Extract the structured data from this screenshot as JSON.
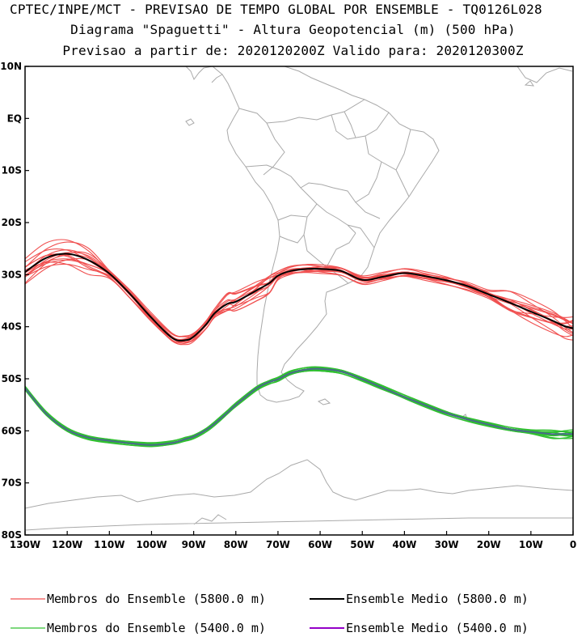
{
  "header": {
    "line1": "CPTEC/INPE/MCT - PREVISAO DE TEMPO GLOBAL POR ENSEMBLE - TQ0126L028",
    "line2": "Diagrama \"Spaguetti\" - Altura Geopotencial (m) (500 hPa)",
    "line3": "Previsao a partir de: 2020120200Z  Valido para: 2020120300Z"
  },
  "chart_data": {
    "type": "line",
    "title": "Diagrama \"Spaguetti\" - Altura Geopotencial (m) (500 hPa)",
    "xlim": [
      -130,
      0
    ],
    "ylim": [
      -80,
      10
    ],
    "x_ticks": [
      -130,
      -120,
      -110,
      -100,
      -90,
      -80,
      -70,
      -60,
      -50,
      -40,
      -30,
      -20,
      -10,
      0
    ],
    "x_tick_labels": [
      "130W",
      "120W",
      "110W",
      "100W",
      "90W",
      "80W",
      "70W",
      "60W",
      "50W",
      "40W",
      "30W",
      "20W",
      "10W",
      "0"
    ],
    "y_ticks": [
      10,
      0,
      -10,
      -20,
      -30,
      -40,
      -50,
      -60,
      -70,
      -80
    ],
    "y_tick_labels": [
      "10N",
      "EQ",
      "10S",
      "20S",
      "30S",
      "40S",
      "50S",
      "60S",
      "70S",
      "80S"
    ],
    "lon": [
      -130,
      -125,
      -120,
      -115,
      -110,
      -105,
      -100,
      -95,
      -92,
      -90,
      -87,
      -85,
      -82,
      -80,
      -75,
      -72,
      -70,
      -67,
      -63,
      -60,
      -55,
      -50,
      -45,
      -40,
      -35,
      -30,
      -25,
      -20,
      -15,
      -10,
      -5,
      -2,
      0
    ],
    "series": [
      {
        "name": "Ensemble Medio (5800.0 m)",
        "color": "#000000",
        "lat": [
          -29.5,
          -26.8,
          -26.0,
          -27.2,
          -29.8,
          -33.8,
          -38.3,
          -42.2,
          -42.6,
          -41.9,
          -39.5,
          -37.4,
          -35.6,
          -35.2,
          -33.0,
          -31.6,
          -30.2,
          -29.3,
          -28.9,
          -28.9,
          -29.3,
          -31.0,
          -30.4,
          -29.7,
          -30.3,
          -31.1,
          -32.2,
          -33.8,
          -35.4,
          -37.1,
          -38.8,
          -39.9,
          -40.3
        ]
      },
      {
        "name": "Ensemble Medio (5400.0 m)",
        "color": "#9400c8",
        "lat": [
          -51.8,
          -56.7,
          -59.8,
          -61.3,
          -61.9,
          -62.4,
          -62.7,
          -62.3,
          -61.6,
          -61.1,
          -59.8,
          -58.6,
          -56.5,
          -55.0,
          -51.8,
          -50.6,
          -50.1,
          -48.9,
          -48.2,
          -48.1,
          -48.6,
          -50.1,
          -51.8,
          -53.5,
          -55.1,
          -56.6,
          -57.8,
          -58.8,
          -59.7,
          -60.2,
          -60.6,
          -60.6,
          -60.6
        ]
      }
    ],
    "legend": [
      {
        "label": "Membros do Ensemble (5800.0 m)",
        "color": "#f05050"
      },
      {
        "label": "Ensemble Medio (5800.0 m)",
        "color": "#000000"
      },
      {
        "label": "Membros do Ensemble (5400.0 m)",
        "color": "#30c030"
      },
      {
        "label": "Ensemble Medio (5400.0 m)",
        "color": "#9400c8"
      }
    ]
  }
}
